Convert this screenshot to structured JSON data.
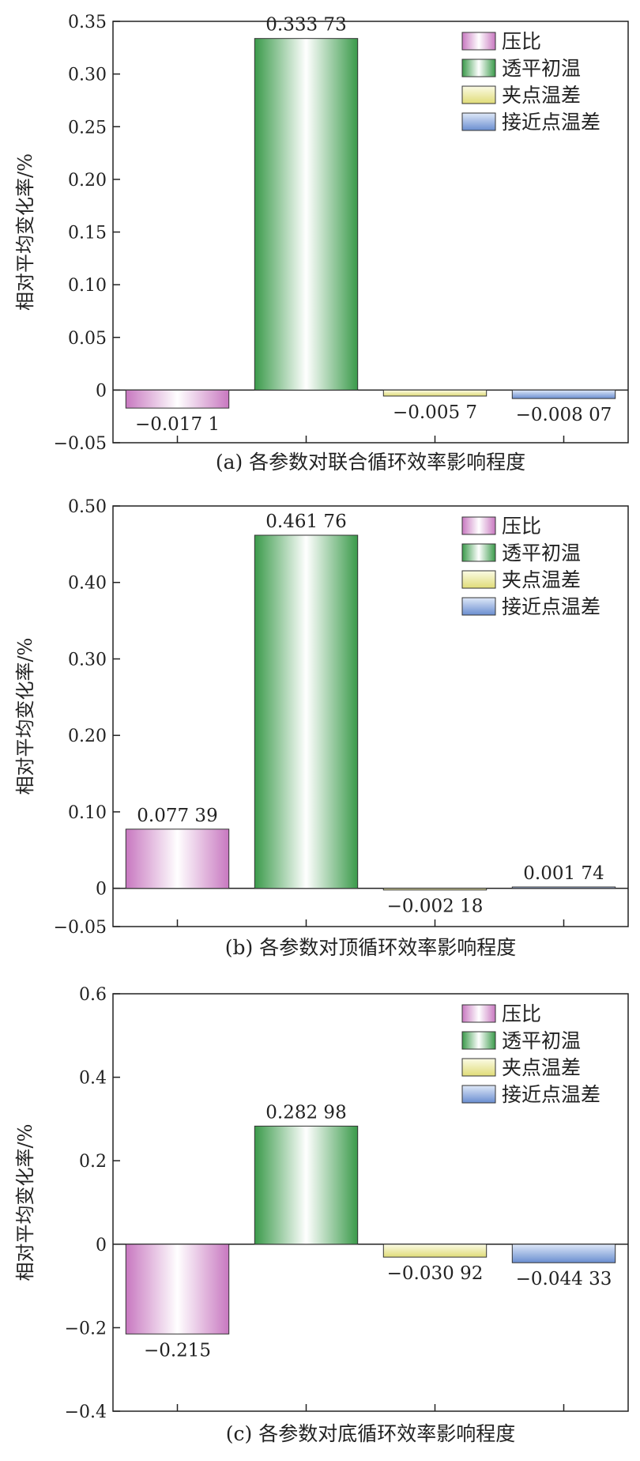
{
  "colors": {
    "pressure_ratio": "#c878c0",
    "turbine_inlet_temp": "#3a9a4a",
    "pinch_temp_diff": "#e0dc78",
    "approach_temp_diff": "#6a8ed0"
  },
  "chart_data": [
    {
      "type": "bar",
      "caption": "(a) 各参数对联合循环效率影响程度",
      "ylabel": "相对平均变化率/%",
      "ylim": [
        -0.05,
        0.35
      ],
      "yticks": [
        "0.35",
        "0.30",
        "0.25",
        "0.20",
        "0.15",
        "0.10",
        "0.05",
        "0",
        "−0.05"
      ],
      "ytick_values": [
        0.35,
        0.3,
        0.25,
        0.2,
        0.15,
        0.1,
        0.05,
        0,
        -0.05
      ],
      "legend": [
        "压比",
        "透平初温",
        "夹点温差",
        "接近点温差"
      ],
      "legend_position": "top-right",
      "values": [
        -0.0171,
        0.33373,
        -0.0057,
        -0.00807
      ],
      "value_labels": [
        "−0.017 1",
        "0.333 73",
        "−0.005 7",
        "−0.008 07"
      ]
    },
    {
      "type": "bar",
      "caption": "(b) 各参数对顶循环效率影响程度",
      "ylabel": "相对平均变化率/%",
      "ylim": [
        -0.05,
        0.5
      ],
      "yticks": [
        "0.50",
        "0.40",
        "0.30",
        "0.20",
        "0.10",
        "0",
        "−0.05"
      ],
      "ytick_values": [
        0.5,
        0.4,
        0.3,
        0.2,
        0.1,
        0,
        -0.05
      ],
      "legend": [
        "压比",
        "透平初温",
        "夹点温差",
        "接近点温差"
      ],
      "legend_position": "top-right",
      "values": [
        0.07739,
        0.46176,
        -0.00218,
        0.00174
      ],
      "value_labels": [
        "0.077 39",
        "0.461 76",
        "−0.002 18",
        "0.001 74"
      ]
    },
    {
      "type": "bar",
      "caption": "(c) 各参数对底循环效率影响程度",
      "ylabel": "相对平均变化率/%",
      "ylim": [
        -0.4,
        0.6
      ],
      "yticks": [
        "0.6",
        "0.4",
        "0.2",
        "0",
        "−0.2",
        "−0.4"
      ],
      "ytick_values": [
        0.6,
        0.4,
        0.2,
        0,
        -0.2,
        -0.4
      ],
      "legend": [
        "压比",
        "透平初温",
        "夹点温差",
        "接近点温差"
      ],
      "legend_position": "top-right",
      "values": [
        -0.215,
        0.28298,
        -0.03092,
        -0.04433
      ],
      "value_labels": [
        "−0.215",
        "0.282 98",
        "−0.030 92",
        "−0.044 33"
      ]
    }
  ]
}
